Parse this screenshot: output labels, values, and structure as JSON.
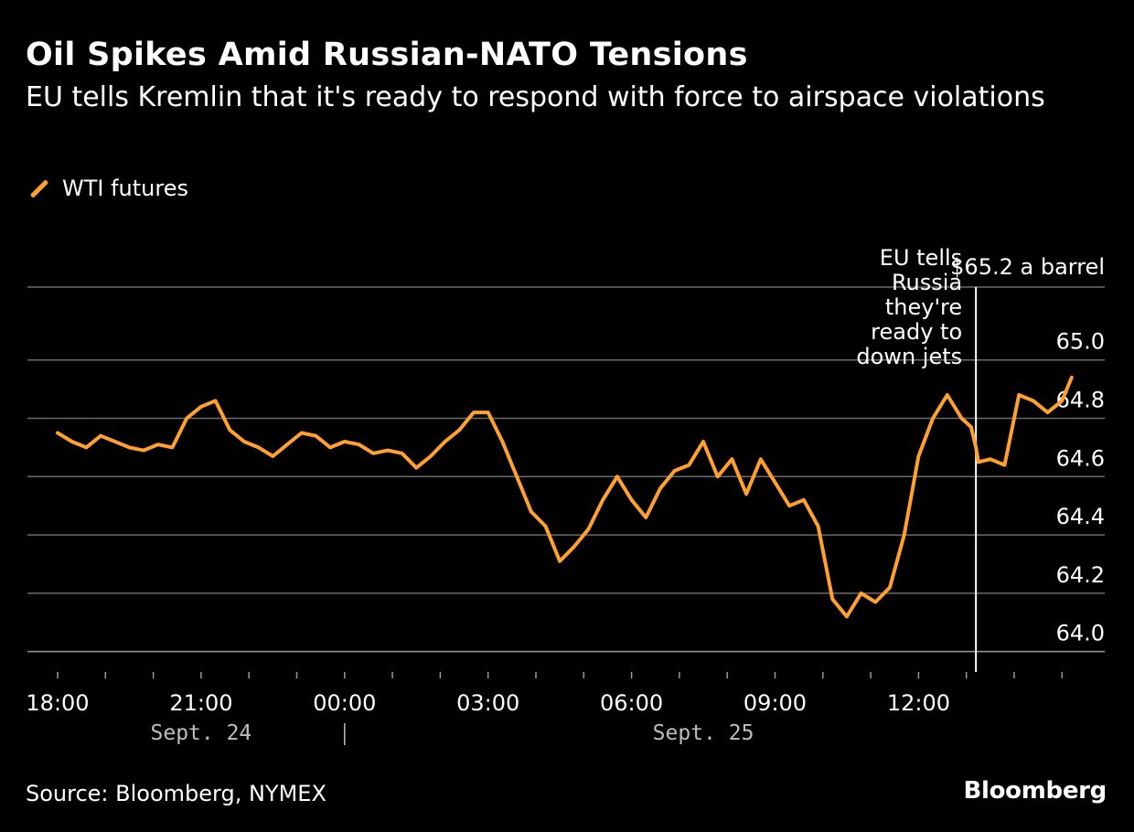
{
  "header": {
    "title": "Oil Spikes Amid Russian-NATO Tensions",
    "subtitle": "EU tells Kremlin that it's ready to respond with force to airspace violations"
  },
  "legend": {
    "label": "WTI futures",
    "color": "#ffa030"
  },
  "footer": {
    "source": "Source: Bloomberg, NYMEX",
    "brand": "Bloomberg"
  },
  "chart_data": {
    "type": "line",
    "title": "Oil Spikes Amid Russian-NATO Tensions",
    "xlabel": "",
    "ylabel": "",
    "x_unit": "hours since Sept. 23 18:00",
    "xlim": [
      -0.2,
      21.6
    ],
    "ylim": [
      63.93,
      65.25
    ],
    "y_ticks": [
      64.0,
      64.2,
      64.4,
      64.6,
      64.8,
      65.0
    ],
    "y_tick_labels": [
      "64.0",
      "64.2",
      "64.4",
      "64.6",
      "64.8",
      "65.0"
    ],
    "y_top_label": "$65.2 a barrel",
    "x_ticks": [
      0,
      3,
      6,
      9,
      12,
      15,
      18
    ],
    "x_tick_labels": [
      "18:00",
      "21:00",
      "00:00",
      "03:00",
      "06:00",
      "09:00",
      "12:00"
    ],
    "date_labels": [
      {
        "x": 3,
        "text": "Sept. 24"
      },
      {
        "x": 13.5,
        "text": "Sept. 25"
      }
    ],
    "date_separator_x": 6,
    "annotation": {
      "x": 19.2,
      "lines": [
        "EU tells",
        "Russia",
        "they're",
        "ready to",
        "down jets"
      ]
    },
    "series": [
      {
        "name": "WTI futures",
        "color": "#ffa030",
        "x": [
          0,
          0.3,
          0.6,
          0.9,
          1.2,
          1.5,
          1.8,
          2.1,
          2.4,
          2.7,
          3.0,
          3.3,
          3.6,
          3.9,
          4.2,
          4.5,
          4.8,
          5.1,
          5.4,
          5.7,
          6.0,
          6.3,
          6.6,
          6.9,
          7.2,
          7.5,
          7.8,
          8.1,
          8.4,
          8.7,
          9.0,
          9.3,
          9.6,
          9.9,
          10.2,
          10.5,
          10.8,
          11.1,
          11.4,
          11.7,
          12.0,
          12.3,
          12.6,
          12.9,
          13.2,
          13.5,
          13.8,
          14.1,
          14.4,
          14.7,
          15.0,
          15.3,
          15.6,
          15.9,
          16.2,
          16.5,
          16.8,
          17.1,
          17.4,
          17.7,
          18.0,
          18.3,
          18.6,
          18.9,
          19.1,
          19.2,
          19.25,
          19.5,
          19.8,
          20.1,
          20.4,
          20.7,
          21.0,
          21.2
        ],
        "values": [
          64.75,
          64.72,
          64.7,
          64.74,
          64.72,
          64.7,
          64.69,
          64.71,
          64.7,
          64.8,
          64.84,
          64.86,
          64.76,
          64.72,
          64.7,
          64.67,
          64.71,
          64.75,
          64.74,
          64.7,
          64.72,
          64.71,
          64.68,
          64.69,
          64.68,
          64.63,
          64.67,
          64.72,
          64.76,
          64.82,
          64.82,
          64.72,
          64.6,
          64.48,
          64.43,
          64.31,
          64.36,
          64.42,
          64.52,
          64.6,
          64.52,
          64.46,
          64.56,
          64.62,
          64.64,
          64.72,
          64.6,
          64.66,
          64.54,
          64.66,
          64.58,
          64.5,
          64.52,
          64.43,
          64.18,
          64.12,
          64.2,
          64.17,
          64.22,
          64.4,
          64.67,
          64.8,
          64.88,
          64.8,
          64.77,
          64.7,
          64.65,
          64.66,
          64.64,
          64.88,
          64.86,
          64.82,
          64.86,
          64.94
        ]
      }
    ]
  }
}
